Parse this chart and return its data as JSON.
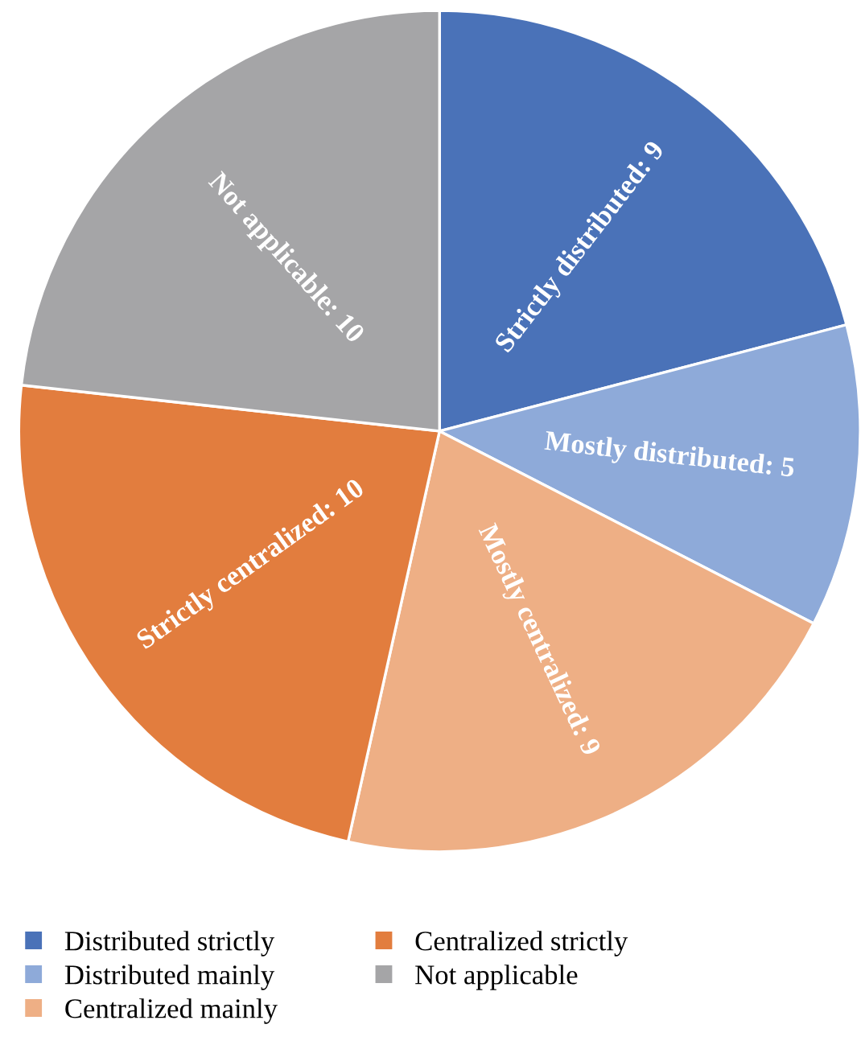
{
  "chart_data": {
    "type": "pie",
    "categories": [
      "Distributed strictly",
      "Distributed mainly",
      "Centralized mainly",
      "Centralized strictly",
      "Not applicable"
    ],
    "values": [
      9,
      5,
      9,
      10,
      10
    ],
    "colors": [
      "#4a72b8",
      "#8eaad9",
      "#eeaf85",
      "#e27d3e",
      "#a5a5a7"
    ],
    "value_labels": [
      "Strictly distributed: 9",
      "Mostly distributed: 5",
      "Mostly centralized: 9",
      "Strictly centralized: 10",
      "Not applicable: 10"
    ],
    "legend": "bottom"
  }
}
